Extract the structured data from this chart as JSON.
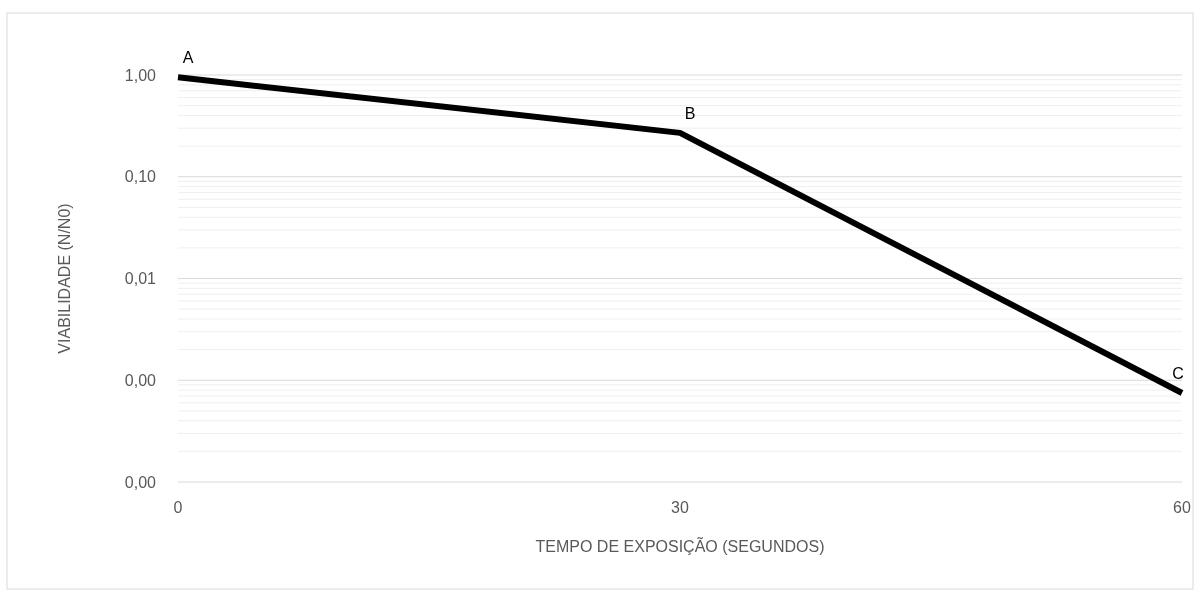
{
  "chart_data": {
    "type": "line",
    "xlabel": "TEMPO DE EXPOSIÇÃO (SEGUNDOS)",
    "ylabel": "VIABILIDADE (N/N0)",
    "x": [
      0,
      30,
      60
    ],
    "series": [
      {
        "color": "#000000",
        "values": [
          0.95,
          0.27,
          0.00075
        ]
      }
    ],
    "log": "y",
    "xlim": [
      0,
      60
    ],
    "xticks": [
      0,
      30,
      60
    ],
    "ylim": [
      0.0001,
      1
    ],
    "yticks": [
      {
        "value": 0.0001,
        "label": "0,00"
      },
      {
        "value": 0.001,
        "label": "0,00"
      },
      {
        "value": 0.01,
        "label": "0,01"
      },
      {
        "value": 0.1,
        "label": "0,10"
      },
      {
        "value": 1,
        "label": "1,00"
      }
    ],
    "grid": "y",
    "marker": "none",
    "line_style": "solid",
    "annotations": [
      {
        "text": "A",
        "x": 0,
        "y": 0.95
      },
      {
        "text": "B",
        "x": 30,
        "y": 0.27
      },
      {
        "text": "C",
        "x": 60,
        "y": 0.00075
      }
    ]
  }
}
